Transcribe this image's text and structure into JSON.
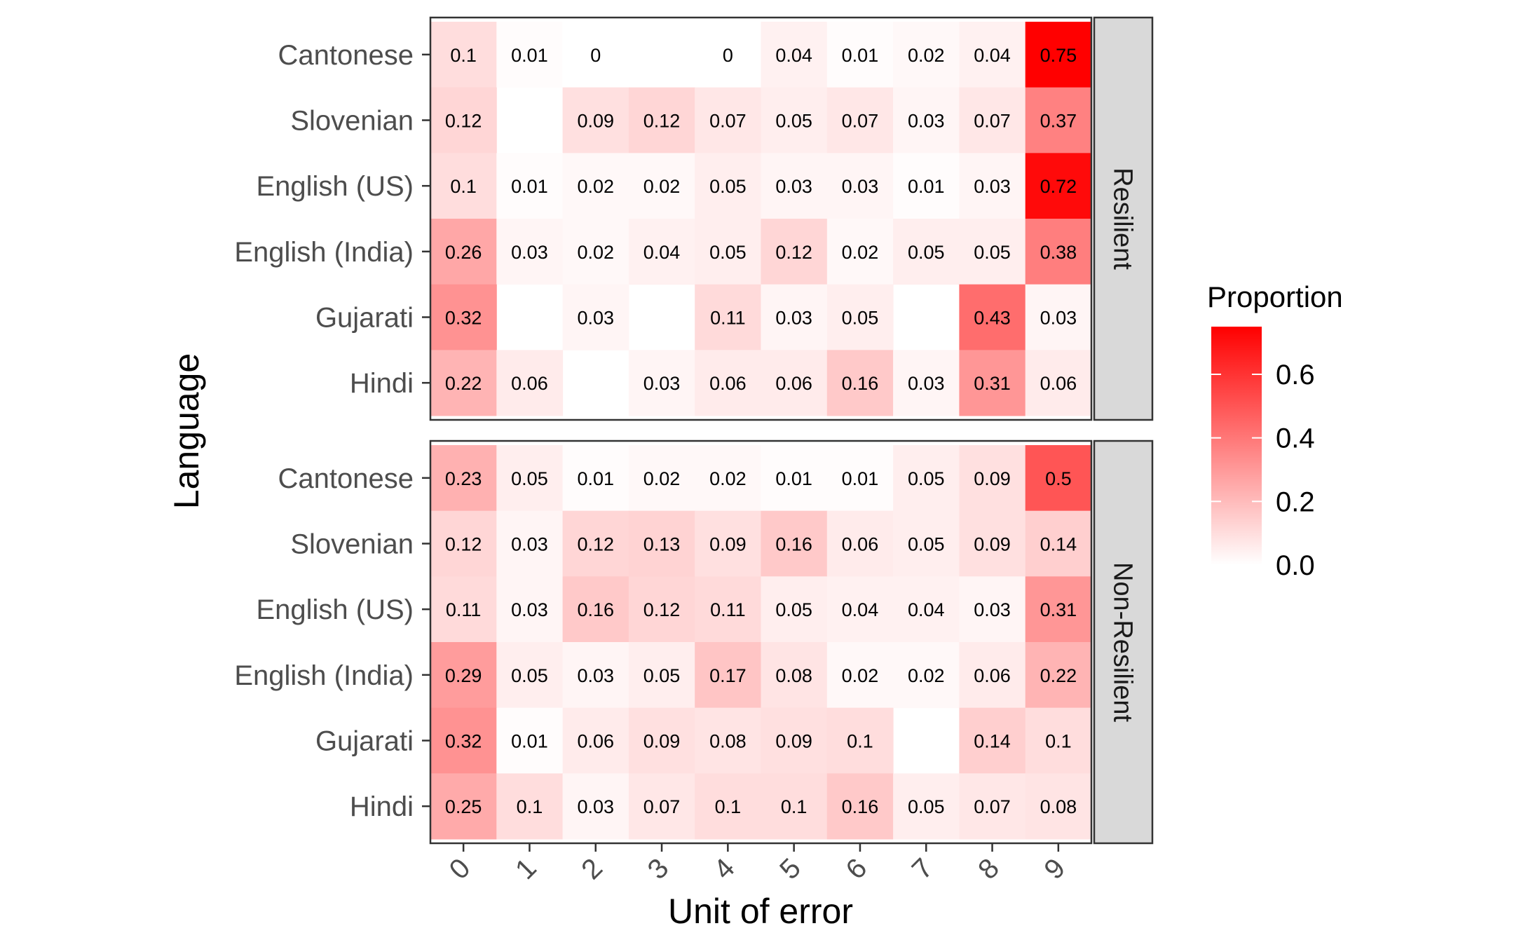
{
  "chart_data": {
    "type": "heatmap",
    "xlabel": "Unit of error",
    "ylabel": "Language",
    "x_categories": [
      "0",
      "1",
      "2",
      "3",
      "4",
      "5",
      "6",
      "7",
      "8",
      "9"
    ],
    "y_categories": [
      "Cantonese",
      "Slovenian",
      "English (US)",
      "English (India)",
      "Gujarati",
      "Hindi"
    ],
    "facets": [
      {
        "label": "Resilient",
        "values": [
          [
            0.1,
            0.01,
            0,
            null,
            0,
            0.04,
            0.01,
            0.02,
            0.04,
            0.75
          ],
          [
            0.12,
            null,
            0.09,
            0.12,
            0.07,
            0.05,
            0.07,
            0.03,
            0.07,
            0.37
          ],
          [
            0.1,
            0.01,
            0.02,
            0.02,
            0.05,
            0.03,
            0.03,
            0.01,
            0.03,
            0.72
          ],
          [
            0.26,
            0.03,
            0.02,
            0.04,
            0.05,
            0.12,
            0.02,
            0.05,
            0.05,
            0.38
          ],
          [
            0.32,
            null,
            0.03,
            null,
            0.11,
            0.03,
            0.05,
            null,
            0.43,
            0.03
          ],
          [
            0.22,
            0.06,
            null,
            0.03,
            0.06,
            0.06,
            0.16,
            0.03,
            0.31,
            0.06
          ]
        ]
      },
      {
        "label": "Non-Resilient",
        "values": [
          [
            0.23,
            0.05,
            0.01,
            0.02,
            0.02,
            0.01,
            0.01,
            0.05,
            0.09,
            0.5
          ],
          [
            0.12,
            0.03,
            0.12,
            0.13,
            0.09,
            0.16,
            0.06,
            0.05,
            0.09,
            0.14
          ],
          [
            0.11,
            0.03,
            0.16,
            0.12,
            0.11,
            0.05,
            0.04,
            0.04,
            0.03,
            0.31
          ],
          [
            0.29,
            0.05,
            0.03,
            0.05,
            0.17,
            0.08,
            0.02,
            0.02,
            0.06,
            0.22
          ],
          [
            0.32,
            0.01,
            0.06,
            0.09,
            0.08,
            0.09,
            0.1,
            null,
            0.14,
            0.1
          ],
          [
            0.25,
            0.1,
            0.03,
            0.07,
            0.1,
            0.1,
            0.16,
            0.05,
            0.07,
            0.08
          ]
        ]
      }
    ],
    "legend": {
      "title": "Proportion",
      "placement": "right",
      "ticks": [
        0.0,
        0.2,
        0.4,
        0.6
      ],
      "tick_labels": [
        "0.0",
        "0.2",
        "0.4",
        "0.6"
      ],
      "range": [
        0,
        0.75
      ]
    },
    "colors": {
      "low": "#ffffff",
      "high": "#ff0000",
      "strip_fill": "#d9d9d9",
      "panel_border": "#333333"
    }
  }
}
